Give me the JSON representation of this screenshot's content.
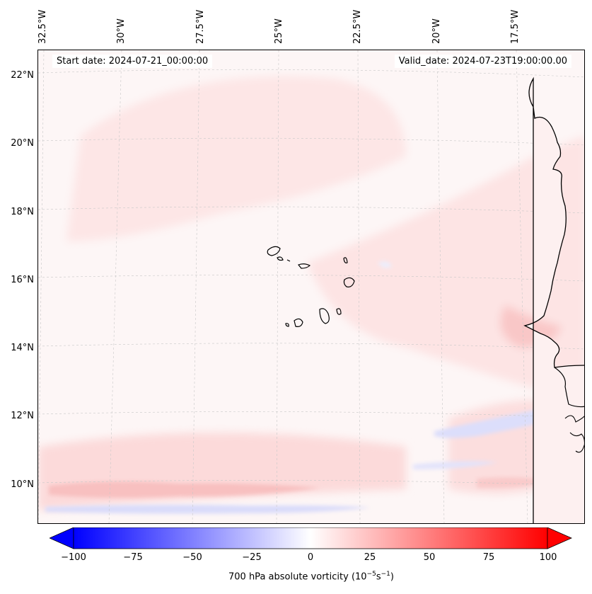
{
  "map": {
    "start_date": "Start date: 2024-07-21_00:00:00",
    "valid_date": "Valid_date: 2024-07-23T19:00:00.00",
    "lat_labels": [
      "22°N",
      "20°N",
      "18°N",
      "16°N",
      "14°N",
      "12°N",
      "10°N"
    ],
    "lon_labels": [
      "32.5°W",
      "30°W",
      "27.5°W",
      "25°W",
      "22.5°W",
      "20°W",
      "17.5°W"
    ],
    "region": "Cape Verde Islands and West African coast",
    "colors": {
      "positive": "#ff0000",
      "negative": "#0000ff",
      "neutral": "#ffffff"
    }
  },
  "colorbar": {
    "ticks": [
      "−100",
      "−75",
      "−50",
      "−25",
      "0",
      "25",
      "50",
      "75",
      "100"
    ],
    "label_prefix": "700 hPa absolute vorticity (10",
    "label_exp1": "−5",
    "label_mid": "s",
    "label_exp2": "−1",
    "label_suffix": ")",
    "range": [
      -100,
      100
    ]
  }
}
